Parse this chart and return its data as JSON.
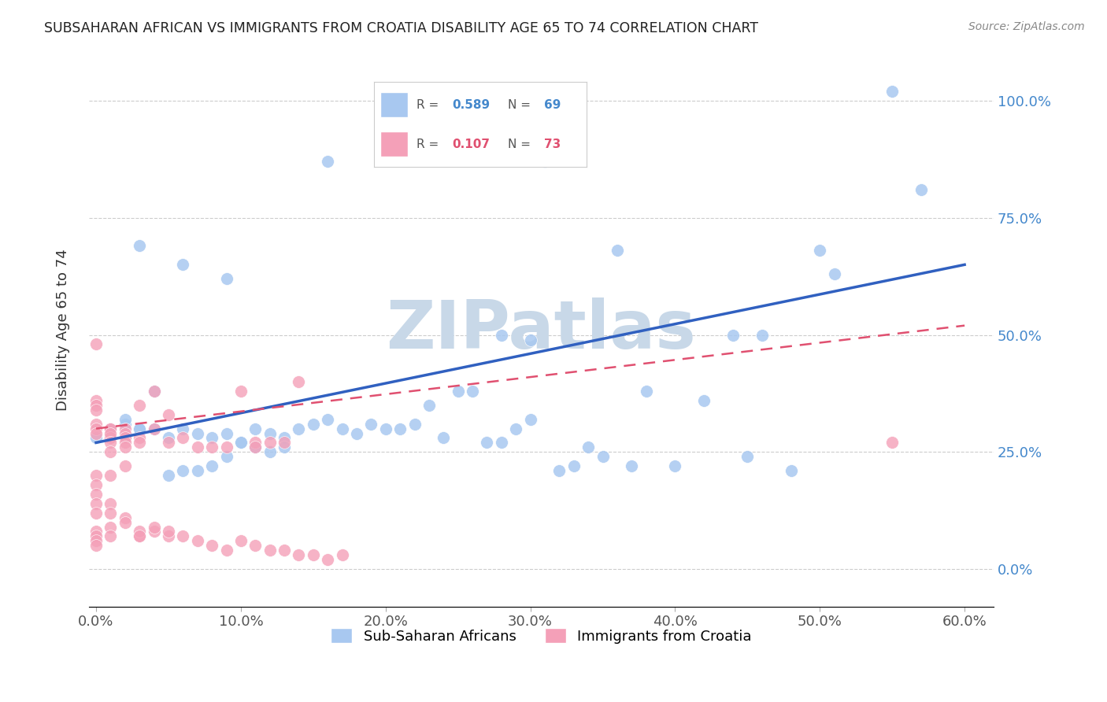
{
  "title": "SUBSAHARAN AFRICAN VS IMMIGRANTS FROM CROATIA DISABILITY AGE 65 TO 74 CORRELATION CHART",
  "source": "Source: ZipAtlas.com",
  "ylabel": "Disability Age 65 to 74",
  "legend1_label": "Sub-Saharan Africans",
  "legend2_label": "Immigrants from Croatia",
  "r1": 0.589,
  "n1": 69,
  "r2": 0.107,
  "n2": 73,
  "color1": "#a8c8f0",
  "color2": "#f4a0b8",
  "line1_color": "#3060c0",
  "line2_color": "#e05070",
  "watermark": "ZIPatlas",
  "watermark_color": "#c8d8e8",
  "background_color": "#ffffff",
  "scatter1_x": [
    0.55,
    0.57,
    0.31,
    0.44,
    0.46,
    0.5,
    0.51,
    0.0,
    0.01,
    0.02,
    0.01,
    0.03,
    0.02,
    0.04,
    0.05,
    0.06,
    0.07,
    0.08,
    0.09,
    0.1,
    0.11,
    0.12,
    0.13,
    0.14,
    0.15,
    0.16,
    0.17,
    0.18,
    0.19,
    0.2,
    0.21,
    0.22,
    0.23,
    0.24,
    0.25,
    0.26,
    0.27,
    0.28,
    0.29,
    0.3,
    0.32,
    0.33,
    0.34,
    0.35,
    0.37,
    0.38,
    0.4,
    0.42,
    0.45,
    0.48,
    0.02,
    0.03,
    0.04,
    0.05,
    0.06,
    0.07,
    0.08,
    0.09,
    0.1,
    0.11,
    0.12,
    0.13,
    0.03,
    0.06,
    0.09,
    0.16,
    0.28,
    0.3,
    0.36
  ],
  "scatter1_y": [
    1.02,
    0.81,
    0.87,
    0.5,
    0.5,
    0.68,
    0.63,
    0.28,
    0.3,
    0.28,
    0.3,
    0.3,
    0.31,
    0.3,
    0.28,
    0.3,
    0.29,
    0.28,
    0.29,
    0.27,
    0.3,
    0.29,
    0.28,
    0.3,
    0.31,
    0.32,
    0.3,
    0.29,
    0.31,
    0.3,
    0.3,
    0.31,
    0.35,
    0.28,
    0.38,
    0.38,
    0.27,
    0.27,
    0.3,
    0.32,
    0.21,
    0.22,
    0.26,
    0.24,
    0.22,
    0.38,
    0.22,
    0.36,
    0.24,
    0.21,
    0.32,
    0.3,
    0.38,
    0.2,
    0.21,
    0.21,
    0.22,
    0.24,
    0.27,
    0.26,
    0.25,
    0.26,
    0.69,
    0.65,
    0.62,
    0.87,
    0.5,
    0.49,
    0.68
  ],
  "scatter2_x": [
    0.0,
    0.0,
    0.0,
    0.0,
    0.0,
    0.0,
    0.0,
    0.01,
    0.01,
    0.01,
    0.01,
    0.01,
    0.01,
    0.01,
    0.02,
    0.02,
    0.02,
    0.02,
    0.02,
    0.03,
    0.03,
    0.03,
    0.04,
    0.04,
    0.05,
    0.05,
    0.06,
    0.07,
    0.08,
    0.09,
    0.1,
    0.11,
    0.11,
    0.12,
    0.13,
    0.14,
    0.55,
    0.0,
    0.0,
    0.0,
    0.0,
    0.0,
    0.01,
    0.01,
    0.01,
    0.02,
    0.02,
    0.03,
    0.04,
    0.05,
    0.0,
    0.0,
    0.0,
    0.0,
    0.01,
    0.01,
    0.02,
    0.03,
    0.03,
    0.04,
    0.05,
    0.06,
    0.07,
    0.08,
    0.09,
    0.1,
    0.11,
    0.12,
    0.13,
    0.14,
    0.15,
    0.16,
    0.17
  ],
  "scatter2_y": [
    0.48,
    0.36,
    0.35,
    0.34,
    0.31,
    0.3,
    0.29,
    0.3,
    0.3,
    0.28,
    0.28,
    0.29,
    0.27,
    0.25,
    0.3,
    0.29,
    0.28,
    0.27,
    0.26,
    0.35,
    0.28,
    0.27,
    0.38,
    0.3,
    0.33,
    0.27,
    0.28,
    0.26,
    0.26,
    0.26,
    0.38,
    0.27,
    0.26,
    0.27,
    0.27,
    0.4,
    0.27,
    0.2,
    0.18,
    0.16,
    0.14,
    0.12,
    0.2,
    0.14,
    0.12,
    0.22,
    0.11,
    0.07,
    0.08,
    0.07,
    0.08,
    0.07,
    0.06,
    0.05,
    0.09,
    0.07,
    0.1,
    0.08,
    0.07,
    0.09,
    0.08,
    0.07,
    0.06,
    0.05,
    0.04,
    0.06,
    0.05,
    0.04,
    0.04,
    0.03,
    0.03,
    0.02,
    0.03
  ],
  "line1_x": [
    0.0,
    0.6
  ],
  "line1_y": [
    0.27,
    0.65
  ],
  "line2_x": [
    0.0,
    0.6
  ],
  "line2_y": [
    0.3,
    0.52
  ],
  "xlim": [
    -0.005,
    0.62
  ],
  "ylim": [
    -0.08,
    1.1
  ],
  "xtick_vals": [
    0.0,
    0.1,
    0.2,
    0.3,
    0.4,
    0.5,
    0.6
  ],
  "xtick_labels": [
    "0.0%",
    "10.0%",
    "20.0%",
    "30.0%",
    "40.0%",
    "50.0%",
    "60.0%"
  ],
  "ytick_vals": [
    0.0,
    0.25,
    0.5,
    0.75,
    1.0
  ],
  "ytick_labels": [
    "0.0%",
    "25.0%",
    "50.0%",
    "75.0%",
    "100.0%"
  ]
}
